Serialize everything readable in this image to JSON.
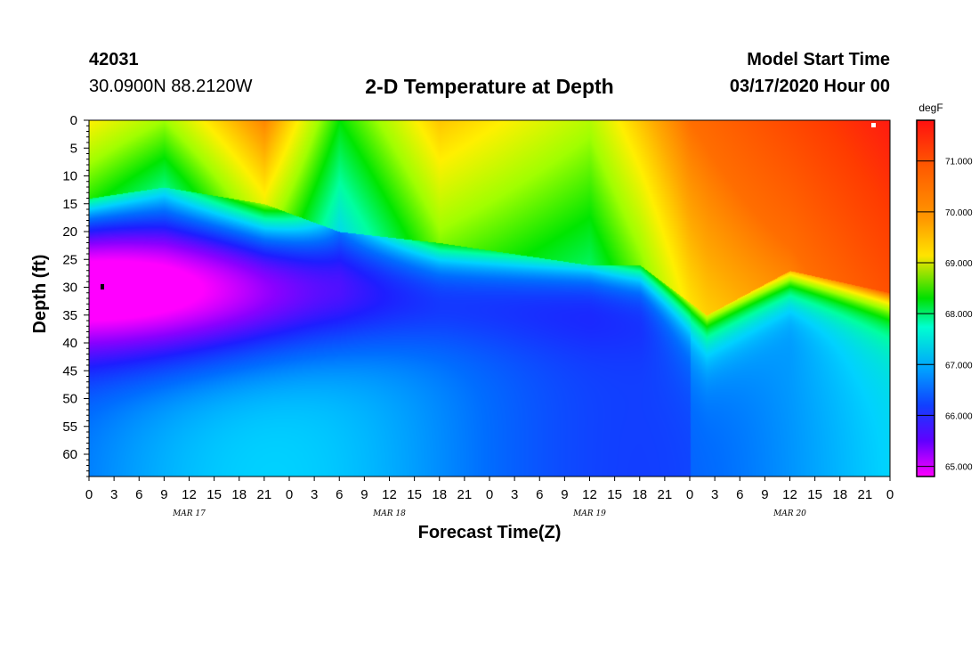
{
  "header": {
    "station": "42031",
    "location": "30.0900N 88.2120W",
    "title": "2-D Temperature at Depth",
    "model_start_label": "Model Start Time",
    "model_start_value": "03/17/2020 Hour 00"
  },
  "chart_data": {
    "type": "heatmap",
    "title": "2-D Temperature at Depth",
    "xlabel": "Forecast Time(Z)",
    "ylabel": "Depth (ft)",
    "x_ticks": [
      "0",
      "3",
      "6",
      "9",
      "12",
      "15",
      "18",
      "21",
      "0",
      "3",
      "6",
      "9",
      "12",
      "15",
      "18",
      "21",
      "0",
      "3",
      "6",
      "9",
      "12",
      "15",
      "18",
      "21",
      "0",
      "3",
      "6",
      "9",
      "12",
      "15",
      "18",
      "21",
      "0"
    ],
    "date_labels": [
      {
        "label": "MAR 17",
        "hour": 12
      },
      {
        "label": "MAR 18",
        "hour": 36
      },
      {
        "label": "MAR 19",
        "hour": 60
      },
      {
        "label": "MAR 20",
        "hour": 84
      }
    ],
    "xlim_hours": [
      0,
      96
    ],
    "y_ticks": [
      "0",
      "5",
      "10",
      "15",
      "20",
      "25",
      "30",
      "35",
      "40",
      "45",
      "50",
      "55",
      "60"
    ],
    "ylim_ft": [
      0,
      64
    ],
    "colorbar": {
      "unit": "degF",
      "min": 64.8,
      "max": 71.8,
      "tick_labels": [
        "71.000",
        "70.000",
        "69.000",
        "68.000",
        "67.000",
        "66.000",
        "65.000"
      ],
      "tick_values": [
        71,
        70,
        69,
        68,
        67,
        66,
        65
      ]
    },
    "surface_layer_temperature_by_hour": [
      {
        "hour": 0,
        "degF": 69.0
      },
      {
        "hour": 9,
        "degF": 68.5
      },
      {
        "hour": 21,
        "degF": 69.8
      },
      {
        "hour": 30,
        "degF": 68.0
      },
      {
        "hour": 42,
        "degF": 69.3
      },
      {
        "hour": 60,
        "degF": 68.6
      },
      {
        "hour": 72,
        "degF": 70.0
      },
      {
        "hour": 96,
        "degF": 71.5
      }
    ],
    "thermocline_depth_ft_by_hour": [
      {
        "hour": 0,
        "depth": 14
      },
      {
        "hour": 9,
        "depth": 12
      },
      {
        "hour": 21,
        "depth": 15
      },
      {
        "hour": 30,
        "depth": 20
      },
      {
        "hour": 42,
        "depth": 22
      },
      {
        "hour": 60,
        "depth": 26
      },
      {
        "hour": 66,
        "depth": 26
      },
      {
        "hour": 74,
        "depth": 35
      },
      {
        "hour": 84,
        "depth": 27
      },
      {
        "hour": 96,
        "depth": 31
      }
    ],
    "cold_core": {
      "hour": 6,
      "depth_ft": 30,
      "degF": 64.9
    }
  }
}
